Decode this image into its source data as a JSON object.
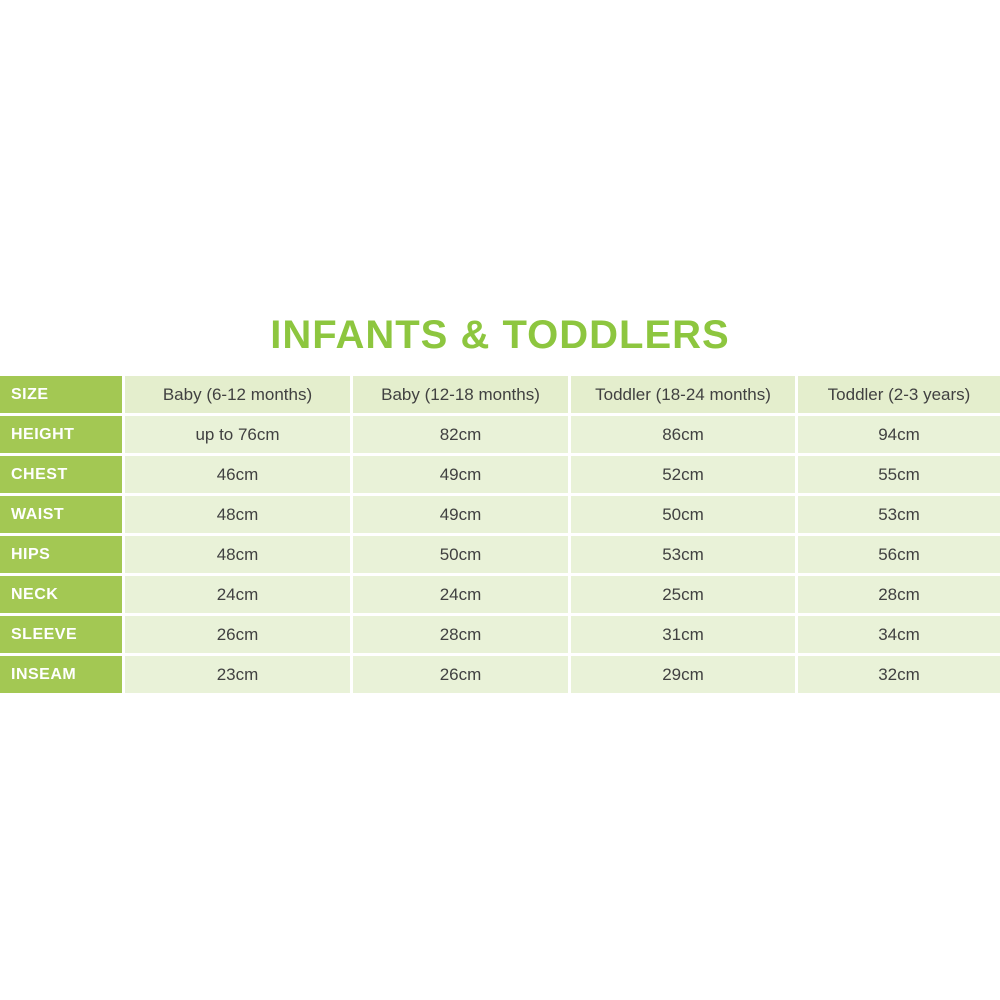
{
  "colors": {
    "title_green": "#8dc63f",
    "cell_green": "#a3c853",
    "header_cell_bg": "#e4eecd",
    "data_cell_bg": "#e9f2d8",
    "label_text": "#ffffff",
    "data_text": "#414141"
  },
  "chart_data": {
    "type": "table",
    "title": "INFANTS & TODDLERS",
    "corner_label": "SIZE",
    "columns": [
      "Baby (6-12 months)",
      "Baby (12-18 months)",
      "Toddler (18-24 months)",
      "Toddler (2-3 years)"
    ],
    "rows": [
      {
        "label": "HEIGHT",
        "values": [
          "up to 76cm",
          "82cm",
          "86cm",
          "94cm"
        ]
      },
      {
        "label": "CHEST",
        "values": [
          "46cm",
          "49cm",
          "52cm",
          "55cm"
        ]
      },
      {
        "label": "WAIST",
        "values": [
          "48cm",
          "49cm",
          "50cm",
          "53cm"
        ]
      },
      {
        "label": "HIPS",
        "values": [
          "48cm",
          "50cm",
          "53cm",
          "56cm"
        ]
      },
      {
        "label": "NECK",
        "values": [
          "24cm",
          "24cm",
          "25cm",
          "28cm"
        ]
      },
      {
        "label": "SLEEVE",
        "values": [
          "26cm",
          "28cm",
          "31cm",
          "34cm"
        ]
      },
      {
        "label": "INSEAM",
        "values": [
          "23cm",
          "26cm",
          "29cm",
          "32cm"
        ]
      }
    ]
  }
}
